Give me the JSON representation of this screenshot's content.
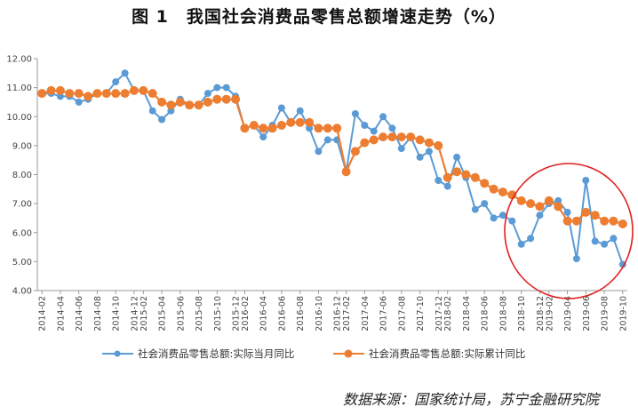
{
  "title": "图 1　我国社会消费品零售总额增速走势（%）",
  "source": "数据来源：国家统计局，苏宁金融研究院",
  "colors": {
    "monthly": "#5B9BD5",
    "cumulative": "#ED7D31",
    "circle": "#E02020",
    "axis": "#999999"
  },
  "chart_data": {
    "type": "line",
    "ylim": [
      4.0,
      12.0
    ],
    "yticks": [
      "4.00",
      "5.00",
      "6.00",
      "7.00",
      "8.00",
      "9.00",
      "10.00",
      "11.00",
      "12.00"
    ],
    "x_tick_labels": [
      "2014-02",
      "2014-04",
      "2014-06",
      "2014-08",
      "2014-10",
      "2014-12",
      "2015-02",
      "2015-04",
      "2015-06",
      "2015-08",
      "2015-10",
      "2015-12",
      "2016-02",
      "2016-04",
      "2016-06",
      "2016-08",
      "2016-10",
      "2016-12",
      "2017-02",
      "2017-04",
      "2017-06",
      "2017-08",
      "2017-10",
      "2017-12",
      "2018-02",
      "2018-04",
      "2018-06",
      "2018-08",
      "2018-10",
      "2018-12",
      "2019-02",
      "2019-04",
      "2019-06",
      "2019-08",
      "2019-10"
    ],
    "x": [
      "2014-02",
      "2014-03",
      "2014-04",
      "2014-05",
      "2014-06",
      "2014-07",
      "2014-08",
      "2014-09",
      "2014-10",
      "2014-11",
      "2014-12",
      "2015-02",
      "2015-03",
      "2015-04",
      "2015-05",
      "2015-06",
      "2015-07",
      "2015-08",
      "2015-09",
      "2015-10",
      "2015-11",
      "2015-12",
      "2016-02",
      "2016-03",
      "2016-04",
      "2016-05",
      "2016-06",
      "2016-07",
      "2016-08",
      "2016-09",
      "2016-10",
      "2016-11",
      "2016-12",
      "2017-02",
      "2017-03",
      "2017-04",
      "2017-05",
      "2017-06",
      "2017-07",
      "2017-08",
      "2017-09",
      "2017-10",
      "2017-11",
      "2017-12",
      "2018-02",
      "2018-03",
      "2018-04",
      "2018-05",
      "2018-06",
      "2018-07",
      "2018-08",
      "2018-09",
      "2018-10",
      "2018-11",
      "2018-12",
      "2019-02",
      "2019-03",
      "2019-04",
      "2019-05",
      "2019-06",
      "2019-07",
      "2019-08",
      "2019-09",
      "2019-10"
    ],
    "series": [
      {
        "name": "社会消费品零售总额:实际当月同比",
        "values": [
          10.8,
          10.8,
          10.7,
          10.7,
          10.5,
          10.6,
          10.8,
          10.8,
          11.2,
          11.5,
          10.9,
          10.9,
          10.2,
          9.9,
          10.2,
          10.6,
          10.4,
          10.4,
          10.8,
          11.0,
          11.0,
          10.7,
          9.6,
          9.7,
          9.3,
          9.7,
          10.3,
          9.8,
          10.2,
          9.6,
          8.8,
          9.2,
          9.2,
          8.1,
          10.1,
          9.7,
          9.5,
          10.0,
          9.6,
          8.9,
          9.3,
          8.6,
          8.8,
          7.8,
          7.6,
          8.6,
          7.9,
          6.8,
          7.0,
          6.5,
          6.6,
          6.4,
          5.6,
          5.8,
          6.6,
          7.0,
          7.1,
          6.7,
          5.1,
          7.8,
          5.7,
          5.6,
          5.8,
          4.9
        ]
      },
      {
        "name": "社会消费品零售总额:实际累计同比",
        "values": [
          10.8,
          10.9,
          10.9,
          10.8,
          10.8,
          10.7,
          10.8,
          10.8,
          10.8,
          10.8,
          10.9,
          10.9,
          10.8,
          10.5,
          10.4,
          10.5,
          10.4,
          10.4,
          10.5,
          10.6,
          10.6,
          10.6,
          9.6,
          9.7,
          9.6,
          9.6,
          9.7,
          9.8,
          9.8,
          9.8,
          9.6,
          9.6,
          9.6,
          8.1,
          8.8,
          9.1,
          9.2,
          9.3,
          9.3,
          9.3,
          9.3,
          9.2,
          9.1,
          9.0,
          7.9,
          8.1,
          8.0,
          7.9,
          7.7,
          7.5,
          7.4,
          7.3,
          7.1,
          7.0,
          6.9,
          7.1,
          6.9,
          6.4,
          6.4,
          6.7,
          6.6,
          6.4,
          6.4,
          6.3
        ]
      }
    ],
    "legend_position": "bottom"
  }
}
